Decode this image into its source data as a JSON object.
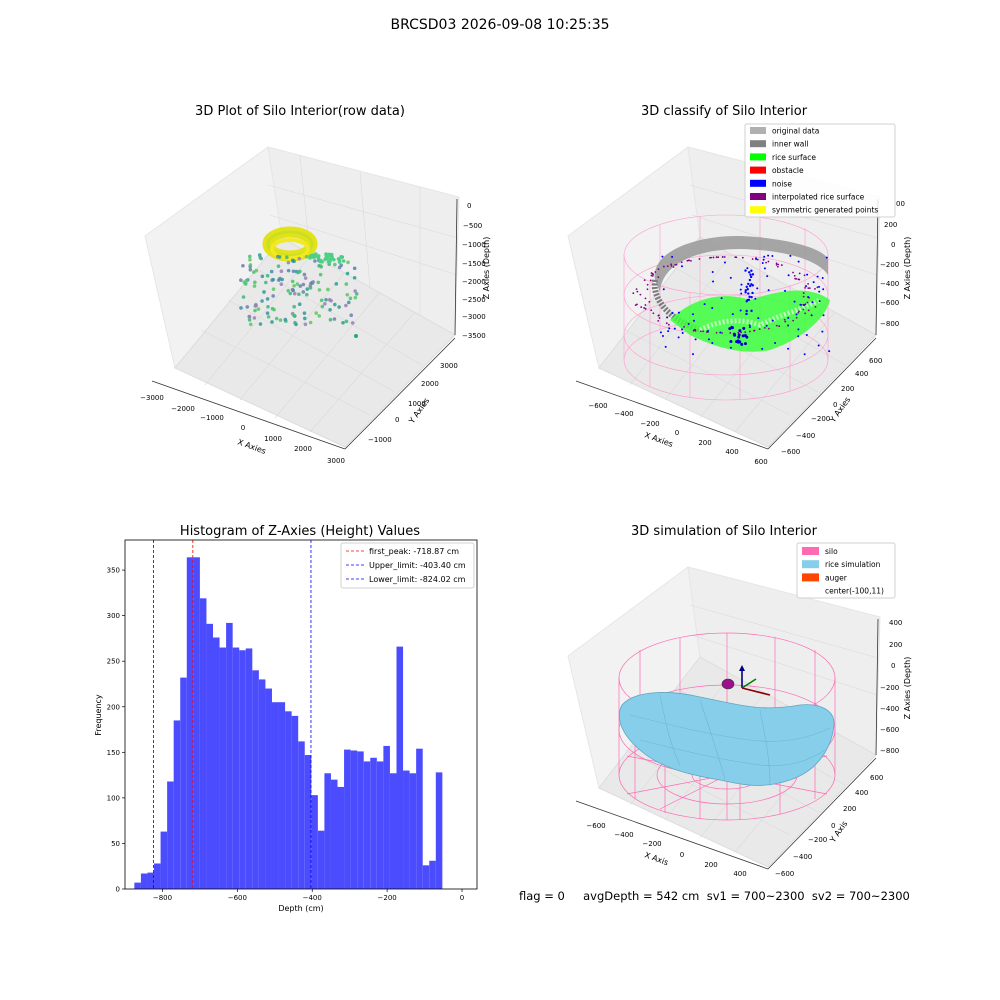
{
  "suptitle": "BRCSD03 2026-09-08 10:25:35",
  "panels": {
    "raw": {
      "title": "3D Plot of Silo Interior(row data)",
      "xlabel": "X Axies",
      "ylabel": "Y Axies",
      "zlabel": "Z Axies (Depth)",
      "xticks": [
        "−3000",
        "−2000",
        "−1000",
        "0",
        "1000",
        "2000",
        "3000"
      ],
      "yticks": [
        "−1000",
        "0",
        "1000",
        "2000",
        "3000"
      ],
      "zticks": [
        "0",
        "−500",
        "−1000",
        "−1500",
        "−2000",
        "−2500",
        "−3000",
        "−3500"
      ]
    },
    "classify": {
      "title": "3D classify of Silo Interior",
      "xlabel": "X Axies",
      "ylabel": "Y Axies",
      "zlabel": "Z Axies (Depth)",
      "xticks": [
        "−600",
        "−400",
        "−200",
        "0",
        "200",
        "400",
        "600"
      ],
      "yticks": [
        "−600",
        "−400",
        "−200",
        "0",
        "200",
        "400",
        "600"
      ],
      "zticks": [
        "200",
        "0",
        "−200",
        "−400",
        "−600",
        "−800"
      ],
      "ztick_partial": "00",
      "legend": [
        {
          "label": "original data",
          "color": "#b0b0b0"
        },
        {
          "label": "inner wall",
          "color": "#808080"
        },
        {
          "label": "rice surface",
          "color": "#00ff00"
        },
        {
          "label": "obstacle",
          "color": "#ff0000"
        },
        {
          "label": "noise",
          "color": "#0000ff"
        },
        {
          "label": "interpolated rice surface",
          "color": "#800080"
        },
        {
          "label": "symmetric generated points",
          "color": "#ffff00"
        }
      ]
    },
    "histogram": {
      "title": "Histogram of Z-Axies (Height) Values",
      "legend": [
        {
          "label": "first_peak: -718.87 cm",
          "color": "#ff0000"
        },
        {
          "label": "Upper_limit: -403.40 cm",
          "color": "#0000ff"
        },
        {
          "label": "Lower_limit: -824.02 cm",
          "color": "#0000ff"
        }
      ]
    },
    "simulation": {
      "title": "3D simulation of Silo Interior",
      "xlabel": "X Axis",
      "ylabel": "Y Axis",
      "zlabel": "Z Axies (Depth)",
      "xticks": [
        "−600",
        "−400",
        "−200",
        "0",
        "200",
        "400"
      ],
      "yticks": [
        "−600",
        "−400",
        "−200",
        "0",
        "200",
        "400",
        "600"
      ],
      "zticks": [
        "400",
        "200",
        "0",
        "−200",
        "−400",
        "−600",
        "−800"
      ],
      "legend": [
        {
          "label": "silo",
          "color": "#ff69b4"
        },
        {
          "label": "rice simulation",
          "color": "#87ceeb"
        },
        {
          "label": "auger",
          "color": "#ff4500"
        },
        {
          "label": "center(-100,11)",
          "color": ""
        }
      ]
    }
  },
  "status_line": "flag = 0     avgDepth = 542 cm  sv1 = 700~2300  sv2 = 700~2300",
  "chart_data": {
    "type": "bar",
    "title": "Histogram of Z-Axies (Height) Values",
    "xlabel": "Depth (cm)",
    "ylabel": "Frequency",
    "xlim": [
      -900,
      40
    ],
    "ylim": [
      0,
      383
    ],
    "xticks": [
      -800,
      -600,
      -400,
      -200,
      0
    ],
    "xtick_labels": [
      "−800",
      "−600",
      "−400",
      "−200",
      "0"
    ],
    "yticks": [
      0,
      50,
      100,
      150,
      200,
      250,
      300,
      350
    ],
    "bin_width": 17.5,
    "bin_start": -875,
    "values": [
      7,
      17,
      18,
      28,
      63,
      118,
      185,
      232,
      364,
      364,
      319,
      291,
      276,
      265,
      292,
      265,
      262,
      264,
      240,
      230,
      220,
      205,
      205,
      195,
      190,
      162,
      147,
      103,
      64,
      127,
      120,
      112,
      153,
      152,
      151,
      140,
      144,
      140,
      157,
      127,
      266,
      130,
      127,
      154,
      26,
      31,
      128
    ],
    "color": "#4c4cff",
    "lines": [
      {
        "name": "first_peak: -718.87 cm",
        "x": -718.87,
        "color": "#ff0000"
      },
      {
        "name": "Upper_limit: -403.40 cm",
        "x": -403.4,
        "color": "#0000ff"
      },
      {
        "name": "Lower_limit: -824.02 cm",
        "x": -824.02,
        "color": "#0000ff"
      }
    ],
    "legend_position": "top-right"
  }
}
